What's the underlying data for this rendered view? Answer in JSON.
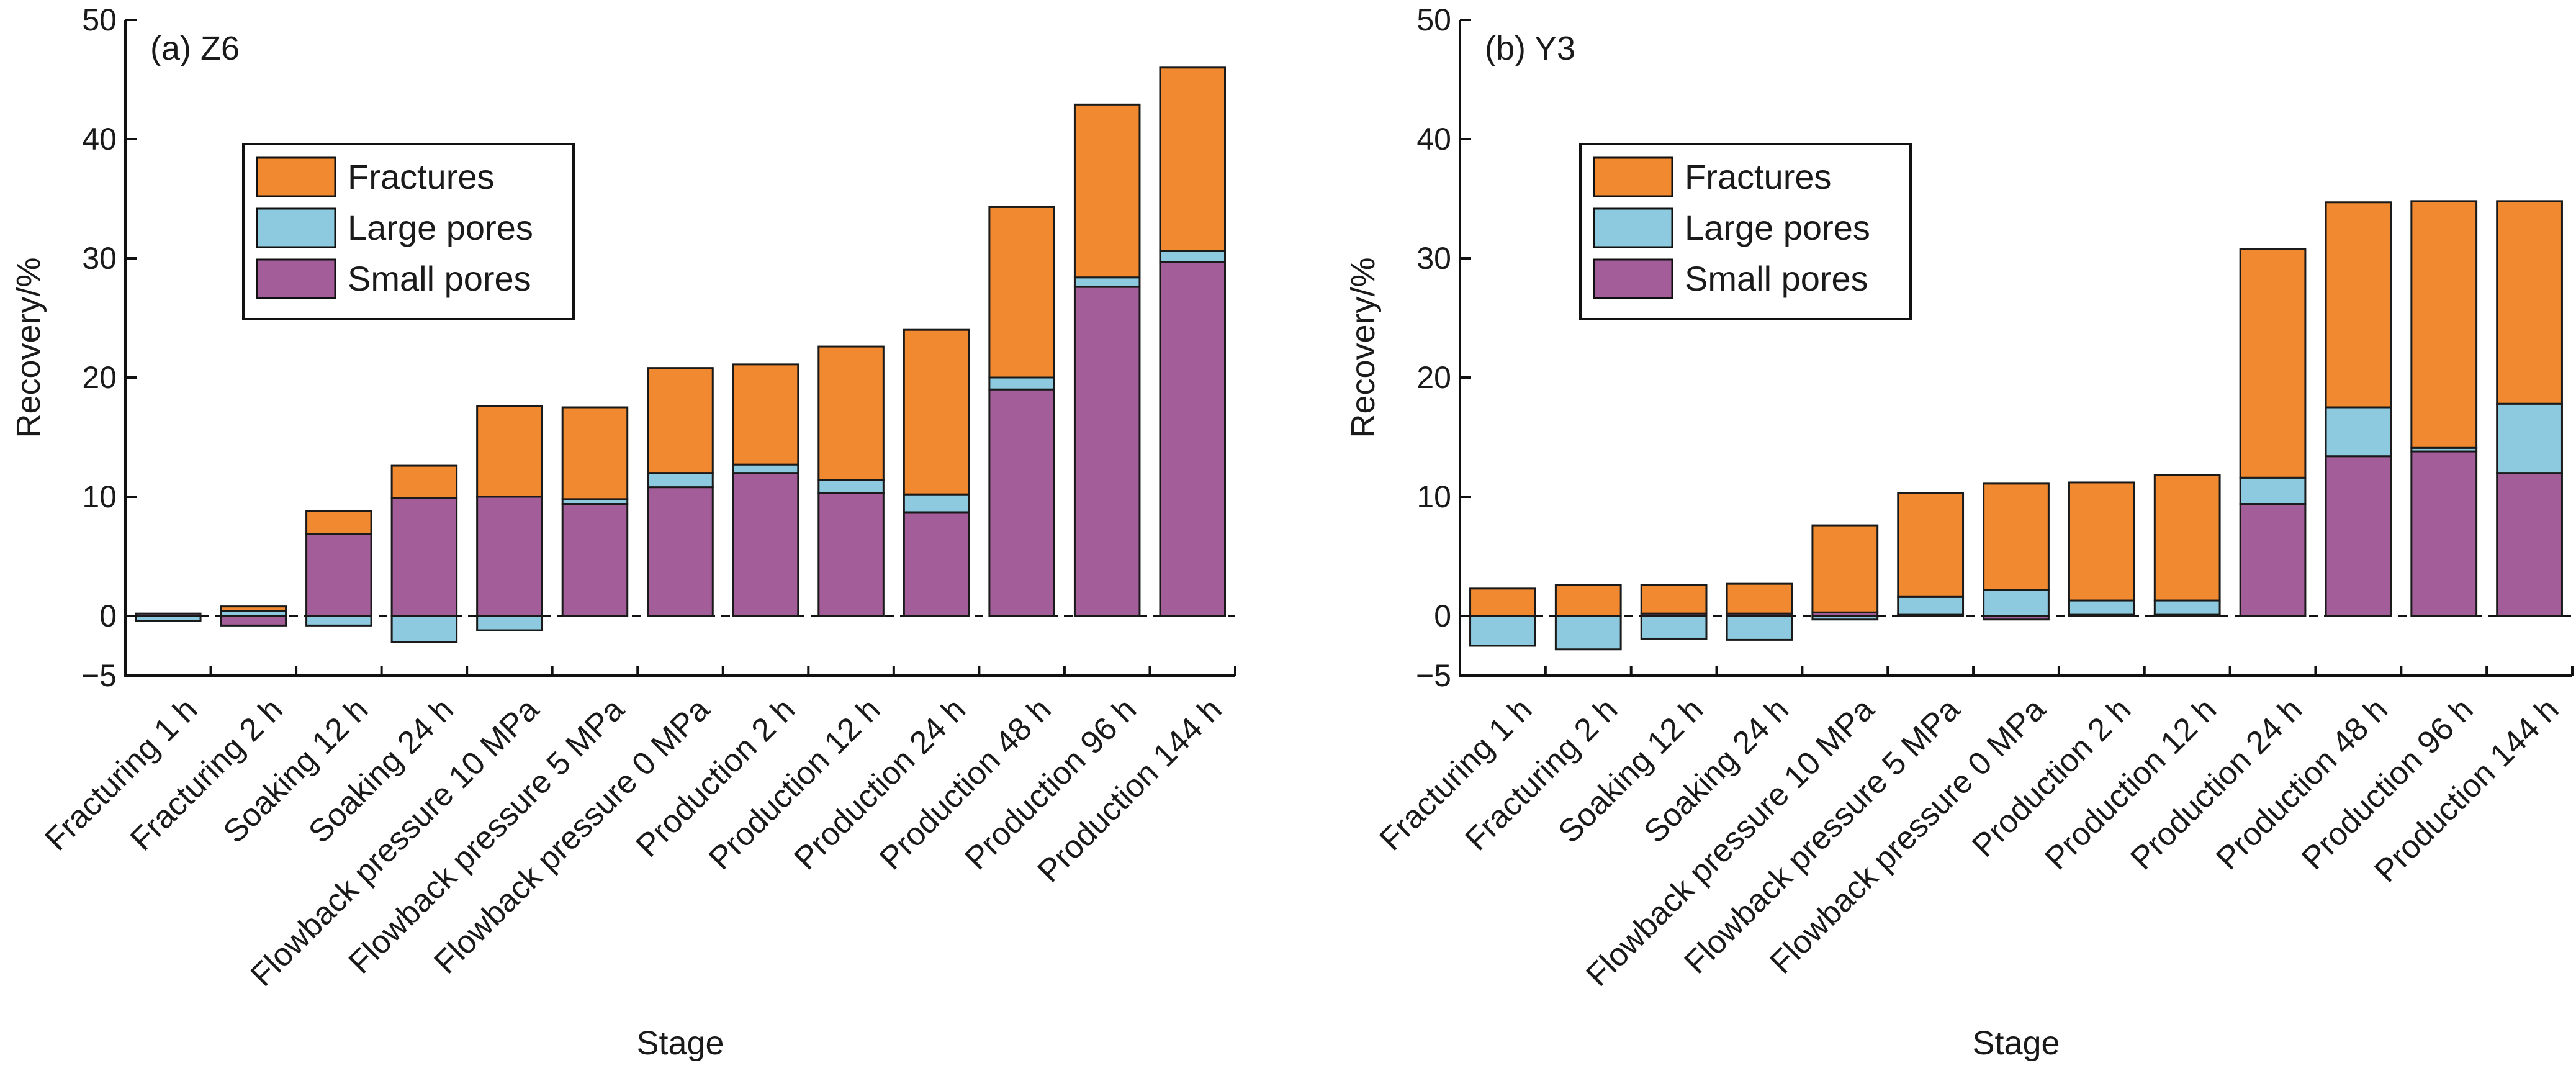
{
  "figure": {
    "xlabel": "Stage",
    "ylabel": "Recovery/%"
  },
  "colors": {
    "Fractures": "#f0892f",
    "Large pores": "#8dcae0",
    "Small pores": "#a35e99"
  },
  "chart_data": [
    {
      "type": "bar",
      "stacked": true,
      "title": "(a) Z6",
      "xlabel": "Stage",
      "ylabel": "Recovery/%",
      "ylim": [
        -5,
        50
      ],
      "yticks": [
        -5,
        0,
        10,
        20,
        30,
        40,
        50
      ],
      "grid": false,
      "legend_position": "upper-left",
      "categories": [
        "Fracturing 1 h",
        "Fracturing 2 h",
        "Soaking 12 h",
        "Soaking 24 h",
        "Flowback pressure 10 MPa",
        "Flowback pressure 5 MPa",
        "Flowback pressure 0 MPa",
        "Production 2 h",
        "Production 12 h",
        "Production 24 h",
        "Production 48 h",
        "Production 96 h",
        "Production 144 h"
      ],
      "series": [
        {
          "name": "Small pores",
          "values": [
            0.2,
            -0.8,
            6.9,
            9.9,
            10.0,
            9.4,
            10.8,
            12.0,
            10.3,
            8.7,
            19.0,
            27.6,
            29.7
          ]
        },
        {
          "name": "Large pores",
          "values": [
            -0.4,
            0.4,
            -0.8,
            -2.2,
            -1.2,
            0.4,
            1.2,
            0.7,
            1.1,
            1.5,
            1.0,
            0.8,
            0.9
          ]
        },
        {
          "name": "Fractures",
          "values": [
            0.0,
            0.4,
            1.9,
            2.7,
            7.6,
            7.7,
            8.8,
            8.4,
            11.2,
            13.8,
            14.3,
            14.5,
            15.4
          ]
        }
      ]
    },
    {
      "type": "bar",
      "stacked": true,
      "title": "(b) Y3",
      "xlabel": "Stage",
      "ylabel": "Recovery/%",
      "ylim": [
        -5,
        50
      ],
      "yticks": [
        -5,
        0,
        10,
        20,
        30,
        40,
        50
      ],
      "grid": false,
      "legend_position": "upper-left",
      "categories": [
        "Fracturing 1 h",
        "Fracturing 2 h",
        "Soaking 12 h",
        "Soaking 24 h",
        "Flowback pressure 10 MPa",
        "Flowback pressure 5 MPa",
        "Flowback pressure 0 MPa",
        "Production 2 h",
        "Production 12 h",
        "Production 24 h",
        "Production 48 h",
        "Production 96 h",
        "Production 144 h"
      ],
      "series": [
        {
          "name": "Small pores",
          "values": [
            0.0,
            0.0,
            0.2,
            0.2,
            0.3,
            0.1,
            -0.3,
            0.1,
            0.1,
            9.4,
            13.4,
            13.8,
            12.0
          ]
        },
        {
          "name": "Large pores",
          "values": [
            -2.5,
            -2.8,
            -1.9,
            -2.0,
            -0.3,
            1.5,
            2.2,
            1.2,
            1.2,
            2.2,
            4.1,
            0.3,
            5.8
          ]
        },
        {
          "name": "Fractures",
          "values": [
            2.3,
            2.6,
            2.4,
            2.5,
            7.3,
            8.7,
            8.9,
            9.9,
            10.5,
            19.2,
            17.2,
            20.7,
            17.0
          ]
        }
      ]
    }
  ]
}
